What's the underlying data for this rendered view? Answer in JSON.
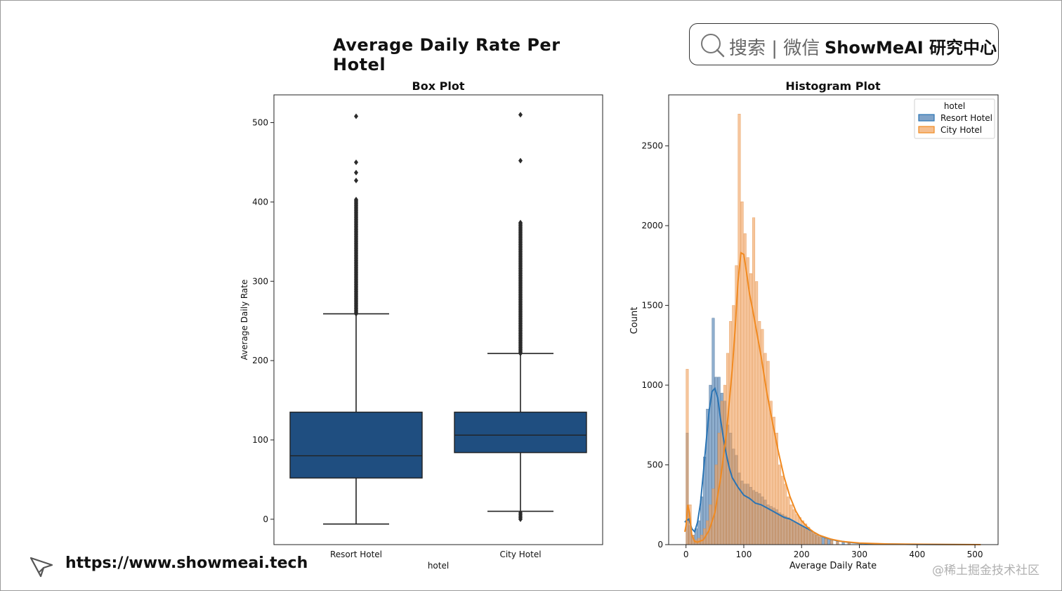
{
  "figure": {
    "suptitle": "Average Daily Rate Per Hotel",
    "search_text": "搜索 | 微信",
    "brand_text": "ShowMeAI 研究中心",
    "footer_url": "https://www.showmeai.tech",
    "watermark": "@稀土掘金技术社区"
  },
  "chart_data": [
    {
      "type": "box",
      "title": "Box Plot",
      "xlabel": "hotel",
      "ylabel": "Average Daily Rate",
      "categories": [
        "Resort Hotel",
        "City Hotel"
      ],
      "ylim": [
        -32,
        535
      ],
      "yticks": [
        0,
        100,
        200,
        300,
        400,
        500
      ],
      "color": "#1f4e80",
      "boxes": [
        {
          "name": "Resort Hotel",
          "q1": 52,
          "median": 80,
          "q3": 135,
          "whisker_low": -6,
          "whisker_high": 259,
          "outlier_min": 259,
          "outlier_max": 403,
          "extra_outliers": [
            427,
            437,
            450,
            508
          ]
        },
        {
          "name": "City Hotel",
          "q1": 84,
          "median": 106,
          "q3": 135,
          "whisker_low": 10,
          "whisker_high": 209,
          "outlier_min": 209,
          "outlier_max": 375,
          "extra_outliers": [
            452,
            510
          ],
          "low_outliers": [
            0,
            2,
            4,
            6,
            8
          ]
        }
      ]
    },
    {
      "type": "histogram",
      "title": "Histogram Plot",
      "xlabel": "Average Daily Rate",
      "ylabel": "Count",
      "xlim": [
        -30,
        540
      ],
      "ylim": [
        0,
        2820
      ],
      "xticks": [
        0,
        100,
        200,
        300,
        400,
        500
      ],
      "yticks": [
        0,
        500,
        1000,
        1500,
        2000,
        2500
      ],
      "legend_title": "hotel",
      "legend_position": "upper right",
      "series": [
        {
          "name": "Resort Hotel",
          "color": "#4a7cb0",
          "kde_color": "#2a74b4",
          "hist": [
            [
              0,
              700
            ],
            [
              5,
              120
            ],
            [
              10,
              60
            ],
            [
              15,
              100
            ],
            [
              20,
              150
            ],
            [
              25,
              300
            ],
            [
              30,
              550
            ],
            [
              35,
              850
            ],
            [
              40,
              1000
            ],
            [
              45,
              1420
            ],
            [
              50,
              1050
            ],
            [
              55,
              1050
            ],
            [
              60,
              950
            ],
            [
              65,
              900
            ],
            [
              70,
              750
            ],
            [
              75,
              700
            ],
            [
              80,
              600
            ],
            [
              85,
              560
            ],
            [
              90,
              450
            ],
            [
              95,
              400
            ],
            [
              100,
              380
            ],
            [
              105,
              380
            ],
            [
              110,
              360
            ],
            [
              115,
              340
            ],
            [
              120,
              330
            ],
            [
              125,
              320
            ],
            [
              130,
              300
            ],
            [
              135,
              280
            ],
            [
              140,
              250
            ],
            [
              145,
              240
            ],
            [
              150,
              230
            ],
            [
              155,
              220
            ],
            [
              160,
              200
            ],
            [
              165,
              190
            ],
            [
              170,
              180
            ],
            [
              175,
              170
            ],
            [
              180,
              150
            ],
            [
              185,
              140
            ],
            [
              190,
              130
            ],
            [
              195,
              120
            ],
            [
              200,
              110
            ],
            [
              205,
              100
            ],
            [
              210,
              90
            ],
            [
              215,
              80
            ],
            [
              220,
              70
            ],
            [
              225,
              60
            ],
            [
              230,
              50
            ],
            [
              235,
              45
            ],
            [
              240,
              40
            ],
            [
              245,
              35
            ],
            [
              250,
              30
            ],
            [
              260,
              20
            ],
            [
              270,
              15
            ],
            [
              280,
              10
            ],
            [
              300,
              6
            ],
            [
              330,
              3
            ],
            [
              370,
              2
            ],
            [
              420,
              1
            ]
          ],
          "kde": [
            [
              -2,
              140
            ],
            [
              0,
              150
            ],
            [
              5,
              160
            ],
            [
              10,
              100
            ],
            [
              15,
              80
            ],
            [
              20,
              140
            ],
            [
              25,
              260
            ],
            [
              30,
              450
            ],
            [
              35,
              650
            ],
            [
              40,
              840
            ],
            [
              45,
              960
            ],
            [
              50,
              980
            ],
            [
              55,
              920
            ],
            [
              60,
              780
            ],
            [
              65,
              660
            ],
            [
              70,
              560
            ],
            [
              75,
              480
            ],
            [
              80,
              420
            ],
            [
              90,
              360
            ],
            [
              100,
              310
            ],
            [
              110,
              290
            ],
            [
              120,
              260
            ],
            [
              130,
              250
            ],
            [
              140,
              230
            ],
            [
              150,
              210
            ],
            [
              160,
              190
            ],
            [
              170,
              170
            ],
            [
              180,
              160
            ],
            [
              190,
              140
            ],
            [
              200,
              120
            ],
            [
              210,
              100
            ],
            [
              220,
              80
            ],
            [
              230,
              60
            ],
            [
              240,
              45
            ],
            [
              250,
              35
            ],
            [
              260,
              25
            ],
            [
              280,
              15
            ],
            [
              300,
              8
            ],
            [
              340,
              4
            ],
            [
              400,
              1
            ],
            [
              500,
              0
            ]
          ]
        },
        {
          "name": "City Hotel",
          "color": "#f0a260",
          "kde_color": "#f18a20",
          "hist": [
            [
              0,
              1100
            ],
            [
              5,
              250
            ],
            [
              10,
              60
            ],
            [
              15,
              30
            ],
            [
              20,
              40
            ],
            [
              25,
              60
            ],
            [
              30,
              100
            ],
            [
              35,
              150
            ],
            [
              40,
              250
            ],
            [
              45,
              350
            ],
            [
              50,
              500
            ],
            [
              55,
              700
            ],
            [
              60,
              900
            ],
            [
              65,
              1000
            ],
            [
              70,
              1200
            ],
            [
              75,
              1400
            ],
            [
              80,
              1500
            ],
            [
              85,
              1750
            ],
            [
              90,
              2700
            ],
            [
              95,
              2150
            ],
            [
              100,
              1950
            ],
            [
              105,
              1800
            ],
            [
              110,
              1700
            ],
            [
              115,
              2050
            ],
            [
              120,
              1650
            ],
            [
              125,
              1400
            ],
            [
              130,
              1350
            ],
            [
              135,
              1200
            ],
            [
              140,
              1150
            ],
            [
              145,
              900
            ],
            [
              150,
              800
            ],
            [
              155,
              700
            ],
            [
              160,
              500
            ],
            [
              165,
              430
            ],
            [
              170,
              380
            ],
            [
              175,
              300
            ],
            [
              180,
              250
            ],
            [
              185,
              220
            ],
            [
              190,
              190
            ],
            [
              195,
              170
            ],
            [
              200,
              150
            ],
            [
              205,
              130
            ],
            [
              210,
              110
            ],
            [
              215,
              90
            ],
            [
              220,
              70
            ],
            [
              225,
              60
            ],
            [
              230,
              50
            ],
            [
              240,
              35
            ],
            [
              250,
              25
            ],
            [
              260,
              18
            ],
            [
              280,
              10
            ],
            [
              300,
              6
            ],
            [
              350,
              3
            ],
            [
              450,
              2
            ],
            [
              510,
              1
            ]
          ],
          "kde": [
            [
              -2,
              80
            ],
            [
              0,
              120
            ],
            [
              3,
              250
            ],
            [
              6,
              200
            ],
            [
              10,
              60
            ],
            [
              15,
              20
            ],
            [
              20,
              15
            ],
            [
              30,
              30
            ],
            [
              40,
              90
            ],
            [
              50,
              200
            ],
            [
              60,
              420
            ],
            [
              70,
              700
            ],
            [
              75,
              900
            ],
            [
              80,
              1100
            ],
            [
              85,
              1350
            ],
            [
              90,
              1650
            ],
            [
              95,
              1830
            ],
            [
              100,
              1820
            ],
            [
              105,
              1700
            ],
            [
              110,
              1570
            ],
            [
              115,
              1480
            ],
            [
              120,
              1380
            ],
            [
              130,
              1180
            ],
            [
              140,
              950
            ],
            [
              150,
              760
            ],
            [
              160,
              580
            ],
            [
              170,
              420
            ],
            [
              180,
              300
            ],
            [
              190,
              210
            ],
            [
              200,
              150
            ],
            [
              210,
              110
            ],
            [
              220,
              80
            ],
            [
              230,
              60
            ],
            [
              250,
              35
            ],
            [
              270,
              20
            ],
            [
              300,
              10
            ],
            [
              350,
              4
            ],
            [
              450,
              1
            ],
            [
              510,
              0
            ]
          ]
        }
      ]
    }
  ]
}
